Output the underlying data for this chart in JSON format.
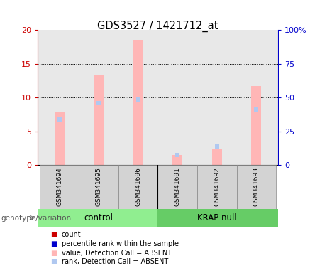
{
  "title": "GDS3527 / 1421712_at",
  "samples": [
    "GSM341694",
    "GSM341695",
    "GSM341696",
    "GSM341691",
    "GSM341692",
    "GSM341693"
  ],
  "group_colors": [
    "#90ee90",
    "#66cc66"
  ],
  "bar_color_absent": "#ffb6b6",
  "marker_color_absent": "#b0c8f0",
  "pink_bars": [
    7.8,
    13.3,
    18.5,
    1.5,
    2.4,
    11.7
  ],
  "blue_marker_pct": [
    34,
    46,
    48.5,
    7.5,
    14,
    41
  ],
  "ylim_left": [
    0,
    20
  ],
  "ylim_right": [
    0,
    100
  ],
  "yticks_left": [
    0,
    5,
    10,
    15,
    20
  ],
  "yticks_right": [
    0,
    25,
    50,
    75,
    100
  ],
  "ytick_labels_right": [
    "0",
    "25",
    "50",
    "75",
    "100%"
  ],
  "ylabel_left_color": "#cc0000",
  "ylabel_right_color": "#0000cc",
  "plot_bg": "#e8e8e8",
  "bar_width": 0.25,
  "legend_items": [
    {
      "label": "count",
      "color": "#cc0000"
    },
    {
      "label": "percentile rank within the sample",
      "color": "#0000cc"
    },
    {
      "label": "value, Detection Call = ABSENT",
      "color": "#ffb6b6"
    },
    {
      "label": "rank, Detection Call = ABSENT",
      "color": "#b0c8f0"
    }
  ],
  "header_label": "genotype/variation"
}
